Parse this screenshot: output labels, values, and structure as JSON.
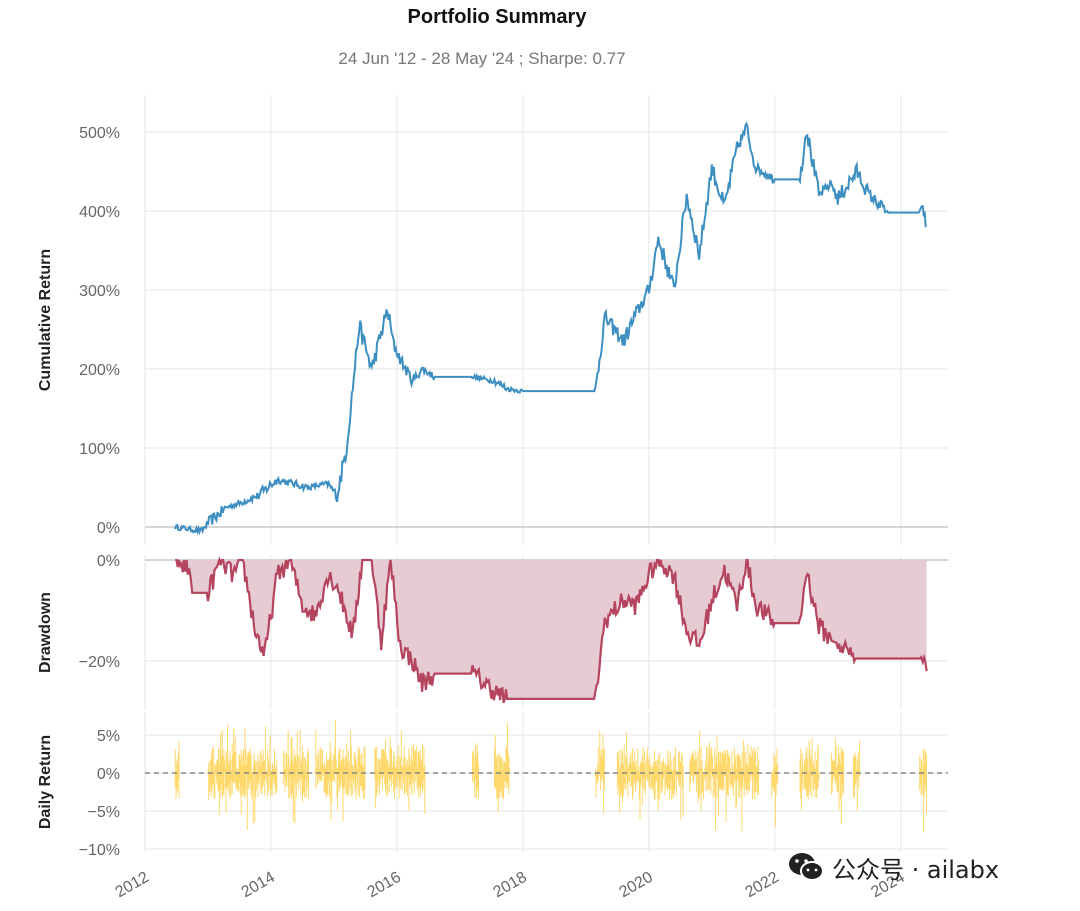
{
  "header": {
    "title": "Portfolio Summary",
    "subtitle": "24 Jun '12 - 28 May '24 ;  Sharpe: 0.77"
  },
  "watermark": {
    "text": "公众号 · ailabx",
    "icon": "wechat-icon"
  },
  "colors": {
    "cumulative": "#3d8fc1",
    "drawdown_line": "#b5445f",
    "drawdown_fill": "#e7cbd3",
    "daily": "#ffd86b",
    "zero_line": "#888888"
  },
  "chart_data": [
    {
      "type": "line",
      "title": "Cumulative Return",
      "ylabel": "Cumulative Return",
      "ylim": [
        -5,
        545
      ],
      "yticks": [
        0,
        100,
        200,
        300,
        400,
        500
      ],
      "ytick_labels": [
        "0%",
        "100%",
        "200%",
        "300%",
        "400%",
        "500%"
      ],
      "series": [
        {
          "name": "Cumulative Return",
          "x": [
            2012.48,
            2012.9,
            2013.0,
            2013.3,
            2013.5,
            2013.8,
            2014.1,
            2014.6,
            2014.9,
            2015.05,
            2015.2,
            2015.4,
            2015.6,
            2015.85,
            2015.95,
            2016.1,
            2016.25,
            2016.4,
            2016.6,
            2017.2,
            2017.55,
            2017.75,
            2018.0,
            2019.15,
            2019.3,
            2019.6,
            2019.8,
            2020.0,
            2020.15,
            2020.4,
            2020.6,
            2020.8,
            2021.0,
            2021.2,
            2021.4,
            2021.55,
            2021.7,
            2022.0,
            2022.4,
            2022.5,
            2022.7,
            2022.9,
            2023.0,
            2023.3,
            2023.5,
            2023.8,
            2024.3,
            2024.35,
            2024.41
          ],
          "y": [
            0,
            -5,
            5,
            25,
            30,
            40,
            60,
            50,
            55,
            40,
            100,
            255,
            200,
            275,
            230,
            205,
            185,
            200,
            190,
            190,
            185,
            175,
            172,
            172,
            265,
            235,
            270,
            300,
            365,
            300,
            420,
            345,
            455,
            405,
            480,
            505,
            455,
            440,
            440,
            505,
            420,
            435,
            415,
            450,
            420,
            398,
            398,
            405,
            380
          ]
        }
      ]
    },
    {
      "type": "area",
      "title": "Drawdown",
      "ylabel": "Drawdown",
      "ylim": [
        -28,
        0
      ],
      "yticks": [
        0,
        -20
      ],
      "ytick_labels": [
        "0%",
        "−20%"
      ],
      "series": [
        {
          "name": "Drawdown",
          "x": [
            2012.48,
            2012.7,
            2012.75,
            2013.0,
            2013.2,
            2013.4,
            2013.55,
            2013.75,
            2013.9,
            2014.1,
            2014.3,
            2014.5,
            2014.7,
            2014.9,
            2015.05,
            2015.3,
            2015.45,
            2015.6,
            2015.75,
            2015.9,
            2016.05,
            2016.25,
            2016.4,
            2016.6,
            2017.2,
            2017.4,
            2017.6,
            2017.75,
            2019.15,
            2019.3,
            2019.6,
            2019.8,
            2020.0,
            2020.15,
            2020.4,
            2020.6,
            2020.8,
            2021.0,
            2021.2,
            2021.4,
            2021.55,
            2021.7,
            2022.0,
            2022.4,
            2022.5,
            2022.7,
            2022.9,
            2023.0,
            2023.3,
            2024.3,
            2024.35,
            2024.41
          ],
          "y": [
            0,
            -2,
            -6.5,
            -6.5,
            0,
            -3,
            0,
            -14,
            -19,
            -3,
            0,
            -9,
            -11,
            -3,
            -5,
            -15,
            0,
            0,
            -16,
            0,
            -17,
            -20,
            -24.5,
            -22.5,
            -22.5,
            -24.5,
            -26.5,
            -27.5,
            -27.5,
            -12,
            -8,
            -9,
            -3,
            0,
            -3,
            -14,
            -17,
            -8,
            -2,
            -9,
            0,
            -9,
            -12.5,
            -12.5,
            -2,
            -13,
            -16,
            -16.5,
            -19.5,
            -19.5,
            -19,
            -22
          ]
        }
      ]
    },
    {
      "type": "bar",
      "title": "Daily Return",
      "ylabel": "Daily Return",
      "ylim": [
        -10,
        8
      ],
      "yticks": [
        5,
        0,
        -5,
        -10
      ],
      "ytick_labels": [
        "5%",
        "0%",
        "−5%",
        "−10%"
      ],
      "active_periods": [
        [
          2012.48,
          2012.55
        ],
        [
          2013.0,
          2014.1
        ],
        [
          2014.2,
          2014.6
        ],
        [
          2014.7,
          2015.5
        ],
        [
          2015.65,
          2016.45
        ],
        [
          2017.2,
          2017.3
        ],
        [
          2017.55,
          2017.8
        ],
        [
          2019.15,
          2019.3
        ],
        [
          2019.5,
          2020.55
        ],
        [
          2020.65,
          2021.75
        ],
        [
          2021.95,
          2022.05
        ],
        [
          2022.4,
          2022.7
        ],
        [
          2022.9,
          2023.1
        ],
        [
          2023.25,
          2023.35
        ],
        [
          2024.3,
          2024.41
        ]
      ],
      "approx_range": [
        -10,
        7.5
      ]
    }
  ],
  "shared_xaxis": {
    "xlim": [
      2012.0,
      2024.75
    ],
    "xticks": [
      2012,
      2014,
      2016,
      2018,
      2020,
      2022,
      2024
    ],
    "xtick_labels": [
      "2012",
      "2014",
      "2016",
      "2018",
      "2020",
      "2022",
      "2024"
    ]
  }
}
